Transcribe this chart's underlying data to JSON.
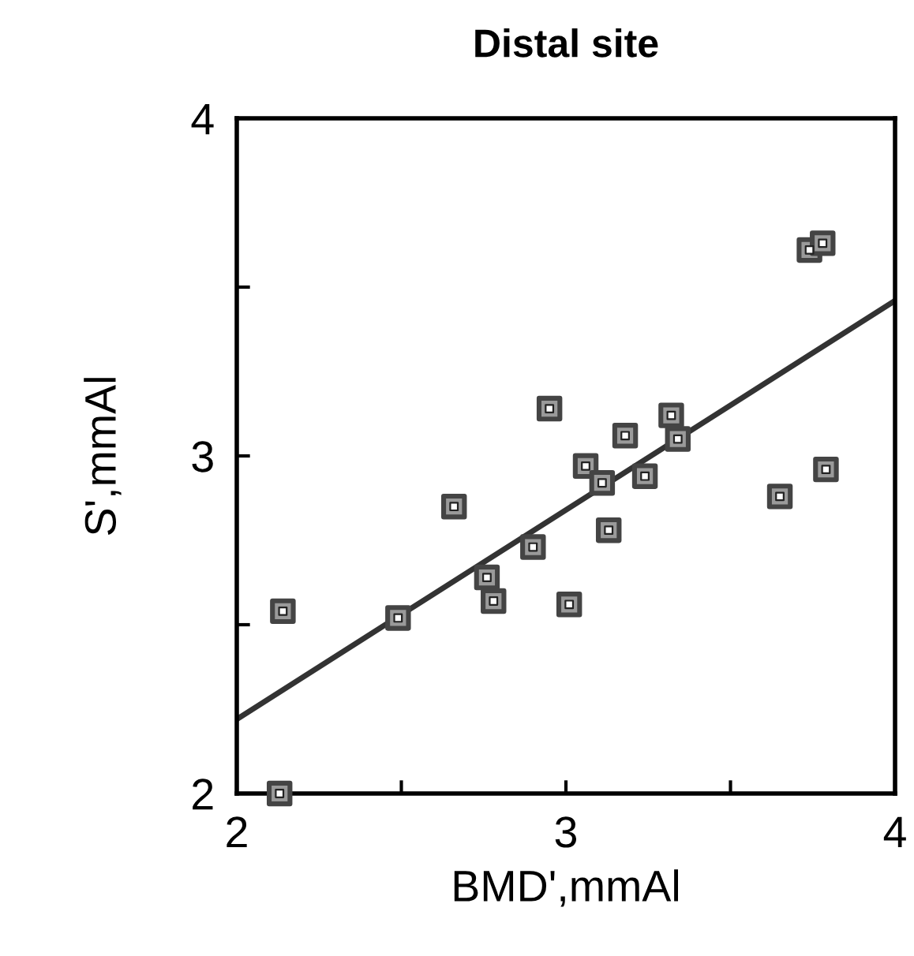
{
  "chart_data": {
    "type": "scatter",
    "title": "Distal site",
    "xlabel": "BMD',mmAl",
    "ylabel": "S',mmAl",
    "xlim": [
      2,
      4
    ],
    "ylim": [
      2,
      4
    ],
    "xticks": [
      2,
      {
        "value": 2.5,
        "label": null
      },
      3,
      {
        "value": 3.5,
        "label": null
      },
      4
    ],
    "yticks": [
      2,
      {
        "value": 2.5,
        "label": null
      },
      3,
      {
        "value": 3.5,
        "label": null
      },
      4
    ],
    "grid": false,
    "series": [
      {
        "marker": "square",
        "color": "#444444",
        "x": [
          2.14,
          2.13,
          2.49,
          2.66,
          2.76,
          2.78,
          2.9,
          2.95,
          3.01,
          3.06,
          3.11,
          3.13,
          3.18,
          3.24,
          3.32,
          3.34,
          3.65,
          3.79,
          3.74,
          3.78
        ],
        "values": [
          2.54,
          2.0,
          2.52,
          2.85,
          2.64,
          2.57,
          2.73,
          3.14,
          2.56,
          2.97,
          2.92,
          2.78,
          3.06,
          2.94,
          3.12,
          3.05,
          2.88,
          2.96,
          3.61,
          3.63
        ]
      },
      {
        "type": "line",
        "color": "#333333",
        "x": [
          2,
          4
        ],
        "values": [
          2.22,
          3.46
        ]
      }
    ]
  }
}
